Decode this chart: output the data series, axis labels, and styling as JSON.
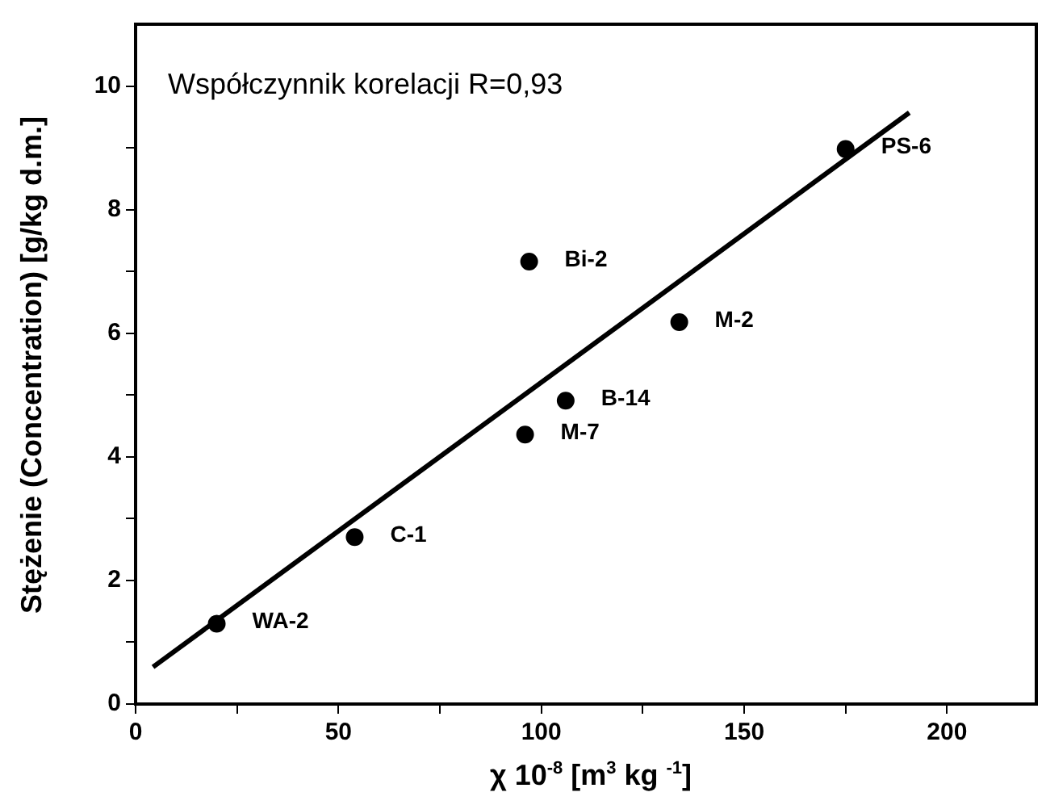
{
  "chart_data": {
    "type": "scatter",
    "xlabel": "χ 10$^{-8}$  [m$^{3}$ kg $^{-1}$]",
    "ylabel": "Stężenie (Concentration) [g/kg d.m.]",
    "xlim": [
      0,
      222
    ],
    "ylim": [
      0,
      11
    ],
    "xticks": [
      0,
      {
        "value": 25,
        "label": null
      },
      50,
      {
        "value": 75,
        "label": null
      },
      100,
      {
        "value": 125,
        "label": null
      },
      150,
      {
        "value": 175,
        "label": null
      },
      200
    ],
    "yticks": [
      0,
      {
        "value": 1,
        "label": null
      },
      2,
      {
        "value": 3,
        "label": null
      },
      4,
      {
        "value": 5,
        "label": null
      },
      6,
      {
        "value": 7,
        "label": null
      },
      8,
      {
        "value": 9,
        "label": null
      },
      10
    ],
    "series": [
      {
        "color": "#000000",
        "marker": "circle",
        "x": [
          20,
          54,
          96,
          106,
          134,
          97,
          175
        ],
        "values": [
          1.3,
          2.7,
          4.36,
          4.91,
          6.18,
          7.16,
          8.98
        ]
      },
      {
        "type": "line",
        "color": "#000000",
        "line_style": "solid",
        "marker": "none",
        "x": [
          4.3,
          190.7
        ],
        "values": [
          0.6,
          9.57
        ]
      }
    ],
    "annotations": [
      "Współczynnik korelacji R=0,93",
      {
        "text": "WA-2",
        "x": 20,
        "y": 1.3
      },
      {
        "text": "C-1",
        "x": 54,
        "y": 2.7
      },
      {
        "text": "M-7",
        "x": 96,
        "y": 4.36
      },
      {
        "text": "B-14",
        "x": 106,
        "y": 4.91
      },
      {
        "text": "M-2",
        "x": 134,
        "y": 6.18
      },
      {
        "text": "Bi-2",
        "x": 97,
        "y": 7.16
      },
      {
        "text": "PS-6",
        "x": 175,
        "y": 8.98
      }
    ],
    "grid": false,
    "legend": false
  }
}
